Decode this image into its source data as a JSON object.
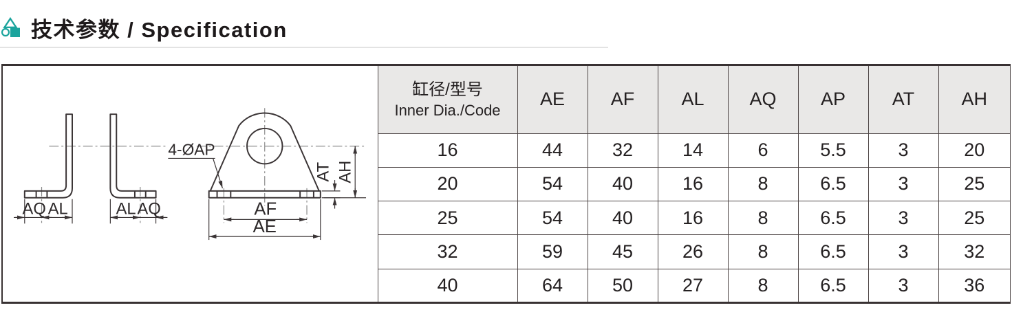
{
  "page": {
    "title": "技术参数 / Specification",
    "accent_color": "#1BA49D"
  },
  "drawing": {
    "labels": {
      "leader": "4-ØAP",
      "at": "AT",
      "ah": "AH",
      "af": "AF",
      "ae": "AE",
      "aq_left": "AQ",
      "al_left": "AL",
      "al_right": "AL",
      "aq_right": "AQ"
    }
  },
  "table": {
    "header": {
      "dia_zh": "缸径/型号",
      "dia_en": "Inner Dia./Code",
      "columns": [
        "AE",
        "AF",
        "AL",
        "AQ",
        "AP",
        "AT",
        "AH"
      ]
    },
    "rows": [
      {
        "code": "16",
        "values": [
          "44",
          "32",
          "14",
          "6",
          "5.5",
          "3",
          "20"
        ]
      },
      {
        "code": "20",
        "values": [
          "54",
          "40",
          "16",
          "8",
          "6.5",
          "3",
          "25"
        ]
      },
      {
        "code": "25",
        "values": [
          "54",
          "40",
          "16",
          "8",
          "6.5",
          "3",
          "25"
        ]
      },
      {
        "code": "32",
        "values": [
          "59",
          "45",
          "26",
          "8",
          "6.5",
          "3",
          "32"
        ]
      },
      {
        "code": "40",
        "values": [
          "64",
          "50",
          "27",
          "8",
          "6.5",
          "3",
          "36"
        ]
      }
    ]
  },
  "chart_data": {
    "type": "table",
    "columns": [
      "缸径/型号 Inner Dia./Code",
      "AE",
      "AF",
      "AL",
      "AQ",
      "AP",
      "AT",
      "AH"
    ],
    "rows": [
      [
        16,
        44,
        32,
        14,
        6,
        5.5,
        3,
        20
      ],
      [
        20,
        54,
        40,
        16,
        8,
        6.5,
        3,
        25
      ],
      [
        25,
        54,
        40,
        16,
        8,
        6.5,
        3,
        25
      ],
      [
        32,
        59,
        45,
        26,
        8,
        6.5,
        3,
        32
      ],
      [
        40,
        64,
        50,
        27,
        8,
        6.5,
        3,
        36
      ]
    ]
  }
}
